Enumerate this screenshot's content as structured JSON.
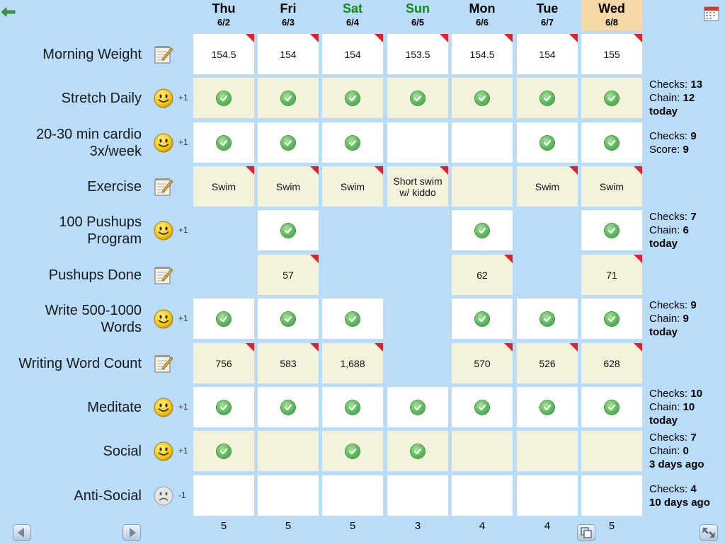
{
  "app": {
    "back_icon": "back-arrow-icon",
    "calendar_icon": "calendar-icon"
  },
  "days": [
    {
      "name": "Thu",
      "date": "6/2",
      "weekend": false,
      "today": false
    },
    {
      "name": "Fri",
      "date": "6/3",
      "weekend": false,
      "today": false
    },
    {
      "name": "Sat",
      "date": "6/4",
      "weekend": true,
      "today": false
    },
    {
      "name": "Sun",
      "date": "6/5",
      "weekend": true,
      "today": false
    },
    {
      "name": "Mon",
      "date": "6/6",
      "weekend": false,
      "today": false
    },
    {
      "name": "Tue",
      "date": "6/7",
      "weekend": false,
      "today": false
    },
    {
      "name": "Wed",
      "date": "6/8",
      "weekend": false,
      "today": true
    }
  ],
  "colors": {
    "background": "#b9dcf9",
    "weekend_text": "#148a14",
    "today_header": "#f7d9a8",
    "note_flag": "#e0202b",
    "check": "#5cb85c"
  },
  "rows": [
    {
      "label": "Morning Weight",
      "icon": "notepad-icon",
      "points": "",
      "cells": [
        {
          "text": "154.5",
          "note": true
        },
        {
          "text": "154",
          "note": true
        },
        {
          "text": "154",
          "note": true
        },
        {
          "text": "153.5",
          "note": true
        },
        {
          "text": "154.5",
          "note": true
        },
        {
          "text": "154",
          "note": true
        },
        {
          "text": "155",
          "note": true
        }
      ],
      "stats": []
    },
    {
      "label": "Stretch Daily",
      "icon": "smiley-icon",
      "points": "+1",
      "cells": [
        {
          "check": true
        },
        {
          "check": true
        },
        {
          "check": true
        },
        {
          "check": true
        },
        {
          "check": true
        },
        {
          "check": true
        },
        {
          "check": true
        }
      ],
      "stats": [
        {
          "label": "Checks: ",
          "value": "13"
        },
        {
          "label": "Chain: ",
          "value": "12"
        },
        {
          "label": "",
          "value": "today"
        }
      ]
    },
    {
      "label": "20-30 min cardio 3x/week",
      "icon": "smiley-icon",
      "points": "+1",
      "cells": [
        {
          "check": true
        },
        {
          "check": true
        },
        {
          "check": true
        },
        {},
        {},
        {
          "check": true
        },
        {
          "check": true
        }
      ],
      "stats": [
        {
          "label": "Checks: ",
          "value": "9"
        },
        {
          "label": "Score: ",
          "value": "9"
        }
      ]
    },
    {
      "label": "Exercise",
      "icon": "notepad-icon",
      "points": "",
      "cells": [
        {
          "text": "Swim",
          "note": true
        },
        {
          "text": "Swim",
          "note": true
        },
        {
          "text": "Swim",
          "note": true
        },
        {
          "text": "Short swim w/ kiddo",
          "note": true
        },
        {},
        {
          "text": "Swim",
          "note": true
        },
        {
          "text": "Swim",
          "note": true
        }
      ],
      "stats": []
    },
    {
      "label": "100 Pushups Program",
      "icon": "smiley-icon",
      "points": "+1",
      "cells": [
        {
          "hidden": true
        },
        {
          "check": true
        },
        {
          "hidden": true
        },
        {
          "hidden": true
        },
        {
          "check": true
        },
        {
          "hidden": true
        },
        {
          "check": true
        }
      ],
      "stats": [
        {
          "label": "Checks: ",
          "value": "7"
        },
        {
          "label": "Chain: ",
          "value": "6"
        },
        {
          "label": "",
          "value": "today"
        }
      ]
    },
    {
      "label": "Pushups Done",
      "icon": "notepad-icon",
      "points": "",
      "cells": [
        {
          "hidden": true
        },
        {
          "text": "57",
          "note": true
        },
        {
          "hidden": true
        },
        {
          "hidden": true
        },
        {
          "text": "62",
          "note": true
        },
        {
          "hidden": true
        },
        {
          "text": "71",
          "note": true
        }
      ],
      "stats": []
    },
    {
      "label": "Write 500-1000 Words",
      "icon": "smiley-icon",
      "points": "+1",
      "cells": [
        {
          "check": true
        },
        {
          "check": true
        },
        {
          "check": true
        },
        {
          "hidden": true
        },
        {
          "check": true
        },
        {
          "check": true
        },
        {
          "check": true
        }
      ],
      "stats": [
        {
          "label": "Checks: ",
          "value": "9"
        },
        {
          "label": "Chain: ",
          "value": "9"
        },
        {
          "label": "",
          "value": "today"
        }
      ]
    },
    {
      "label": "Writing Word Count",
      "icon": "notepad-icon",
      "points": "",
      "cells": [
        {
          "text": "756",
          "note": true
        },
        {
          "text": "583",
          "note": true
        },
        {
          "text": "1,688",
          "note": true
        },
        {
          "hidden": true
        },
        {
          "text": "570",
          "note": true
        },
        {
          "text": "526",
          "note": true
        },
        {
          "text": "628",
          "note": true
        }
      ],
      "stats": []
    },
    {
      "label": "Meditate",
      "icon": "smiley-icon",
      "points": "+1",
      "cells": [
        {
          "check": true
        },
        {
          "check": true
        },
        {
          "check": true
        },
        {
          "check": true
        },
        {
          "check": true
        },
        {
          "check": true
        },
        {
          "check": true
        }
      ],
      "stats": [
        {
          "label": "Checks: ",
          "value": "10"
        },
        {
          "label": "Chain: ",
          "value": "10"
        },
        {
          "label": "",
          "value": "today"
        }
      ]
    },
    {
      "label": "Social",
      "icon": "smiley-icon",
      "points": "+1",
      "cells": [
        {
          "check": true
        },
        {},
        {
          "check": true
        },
        {
          "check": true
        },
        {},
        {},
        {}
      ],
      "stats": [
        {
          "label": "Checks: ",
          "value": "7"
        },
        {
          "label": "Chain: ",
          "value": "0"
        },
        {
          "label": "",
          "value": "3 days ago"
        }
      ]
    },
    {
      "label": "Anti-Social",
      "icon": "frown-icon",
      "points": "-1",
      "cells": [
        {},
        {},
        {},
        {},
        {},
        {},
        {}
      ],
      "stats": [
        {
          "label": "Checks: ",
          "value": "4"
        },
        {
          "label": "",
          "value": "10 days ago"
        }
      ]
    }
  ],
  "totals": [
    "5",
    "5",
    "5",
    "3",
    "4",
    "4",
    "5"
  ],
  "nav": {
    "prev_icon": "left-triangle-icon",
    "next_icon": "right-triangle-icon",
    "copy_icon": "copy-icon",
    "resize_icon": "resize-icon"
  }
}
